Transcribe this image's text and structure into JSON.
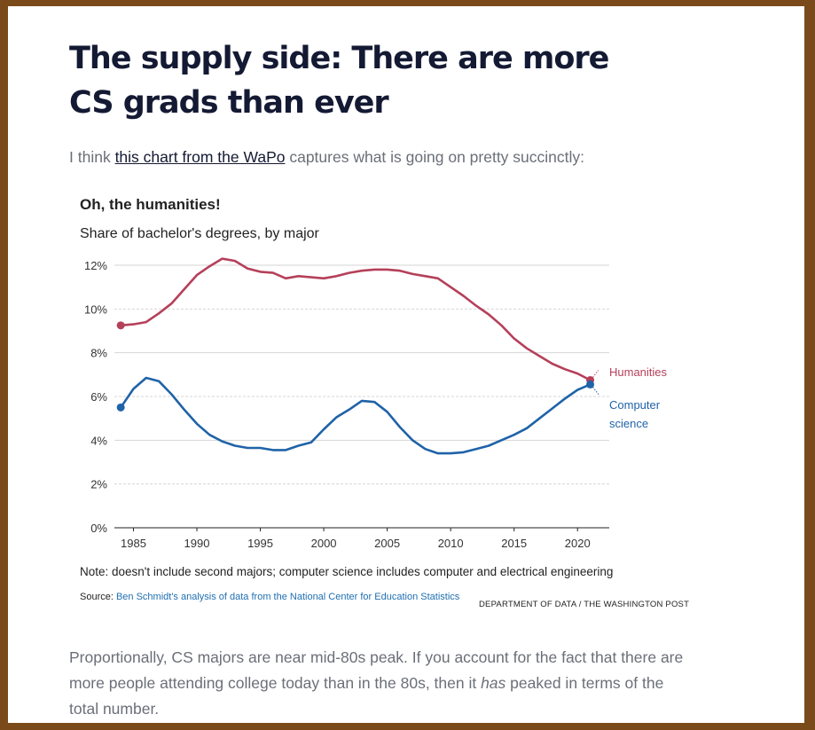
{
  "article": {
    "headline": "The supply side: There are more CS grads than ever",
    "intro_before": "I think ",
    "intro_link": "this chart from the WaPo",
    "intro_after": " captures what is going on pretty succinctly:",
    "para_part1": "Proportionally, CS majors are near mid-80s peak. If you account for the fact that there are more people attending college today than in the 80s, then it ",
    "para_emph": "has",
    "para_part2": " peaked in terms of the total number."
  },
  "chart_data": {
    "type": "line",
    "title": "Oh, the humanities!",
    "subtitle": "Share of bachelor's degrees, by major",
    "xlabel": "",
    "ylabel": "",
    "xlim": [
      1983.5,
      2022.5
    ],
    "ylim": [
      0,
      12
    ],
    "x_ticks": [
      "1985",
      "1990",
      "1995",
      "2000",
      "2005",
      "2010",
      "2015",
      "2020"
    ],
    "y_ticks": [
      "0%",
      "2%",
      "4%",
      "6%",
      "8%",
      "10%",
      "12%"
    ],
    "grid": true,
    "note": "Note: doesn't include second majors; computer science includes computer and electrical engineering",
    "source_label": "Source: ",
    "source_link": "Ben Schmidt's analysis of data from the National Center for Education Statistics",
    "credit": "DEPARTMENT OF DATA / THE WASHINGTON POST",
    "series": [
      {
        "name": "Humanities",
        "color": "#b5405a",
        "x": [
          1984,
          1985,
          1986,
          1987,
          1988,
          1989,
          1990,
          1991,
          1992,
          1993,
          1994,
          1995,
          1996,
          1997,
          1998,
          1999,
          2000,
          2001,
          2002,
          2003,
          2004,
          2005,
          2006,
          2007,
          2008,
          2009,
          2010,
          2011,
          2012,
          2013,
          2014,
          2015,
          2016,
          2017,
          2018,
          2019,
          2020,
          2021
        ],
        "values": [
          9.25,
          9.3,
          9.4,
          9.8,
          10.25,
          10.9,
          11.55,
          11.95,
          12.3,
          12.2,
          11.85,
          11.7,
          11.65,
          11.4,
          11.5,
          11.45,
          11.4,
          11.5,
          11.65,
          11.75,
          11.8,
          11.8,
          11.75,
          11.6,
          11.5,
          11.4,
          11.0,
          10.6,
          10.15,
          9.75,
          9.25,
          8.65,
          8.2,
          7.85,
          7.5,
          7.25,
          7.05,
          6.75
        ]
      },
      {
        "name": "Computer science",
        "color": "#1f63a8",
        "x": [
          1984,
          1985,
          1986,
          1987,
          1988,
          1989,
          1990,
          1991,
          1992,
          1993,
          1994,
          1995,
          1996,
          1997,
          1998,
          1999,
          2000,
          2001,
          2002,
          2003,
          2004,
          2005,
          2006,
          2007,
          2008,
          2009,
          2010,
          2011,
          2012,
          2013,
          2014,
          2015,
          2016,
          2017,
          2018,
          2019,
          2020,
          2021
        ],
        "values": [
          5.5,
          6.35,
          6.85,
          6.7,
          6.1,
          5.4,
          4.75,
          4.25,
          3.95,
          3.75,
          3.65,
          3.65,
          3.55,
          3.55,
          3.75,
          3.9,
          4.5,
          5.05,
          5.4,
          5.8,
          5.75,
          5.3,
          4.6,
          4.0,
          3.6,
          3.4,
          3.4,
          3.45,
          3.6,
          3.75,
          4.0,
          4.25,
          4.55,
          5.0,
          5.45,
          5.9,
          6.3,
          6.55
        ]
      }
    ]
  }
}
